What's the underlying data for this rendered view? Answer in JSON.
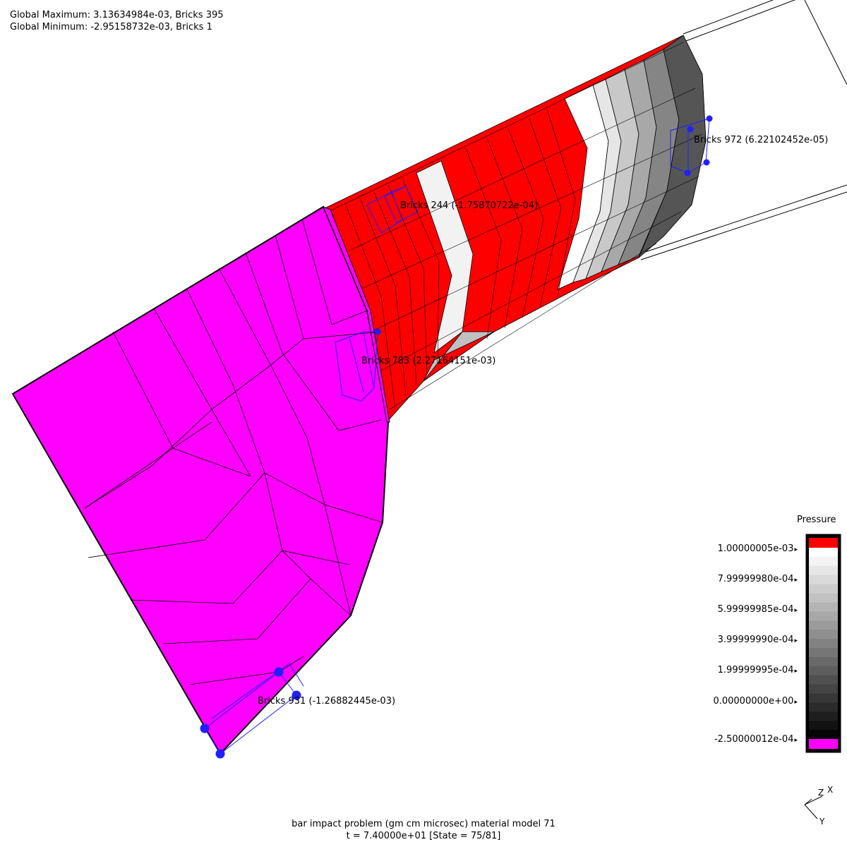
{
  "header": {
    "global_max": "Global Maximum: 3.13634984e-03, Bricks 395",
    "global_min": "Global Minimum: -2.95158732e-03, Bricks 1"
  },
  "bricks": [
    {
      "label": "Bricks 244 (-1.75870722e-04)"
    },
    {
      "label": "Bricks 783 (2.27164151e-03)"
    },
    {
      "label": "Bricks 972 (6.22102452e-05)"
    },
    {
      "label": "Bricks 931 (-1.26882445e-03)"
    }
  ],
  "legend": {
    "title": "Pressure",
    "labels": [
      "1.00000005e-03",
      "7.99999980e-04",
      "5.99999985e-04",
      "3.99999990e-04",
      "1.99999995e-04",
      "0.00000000e+00",
      "-2.50000012e-04"
    ],
    "top_color": "#ff0000",
    "bottom_color": "#ff00ff"
  },
  "triad": {
    "z": "Z",
    "x": "X",
    "y": "Y"
  },
  "footer": {
    "title": "bar impact problem (gm cm microsec) material model 71",
    "state": "t = 7.40000e+01 [State = 75/81]"
  },
  "colors": {
    "magenta": "#ff00ff",
    "red": "#ff0000",
    "brick_highlight": "#2020ff"
  }
}
